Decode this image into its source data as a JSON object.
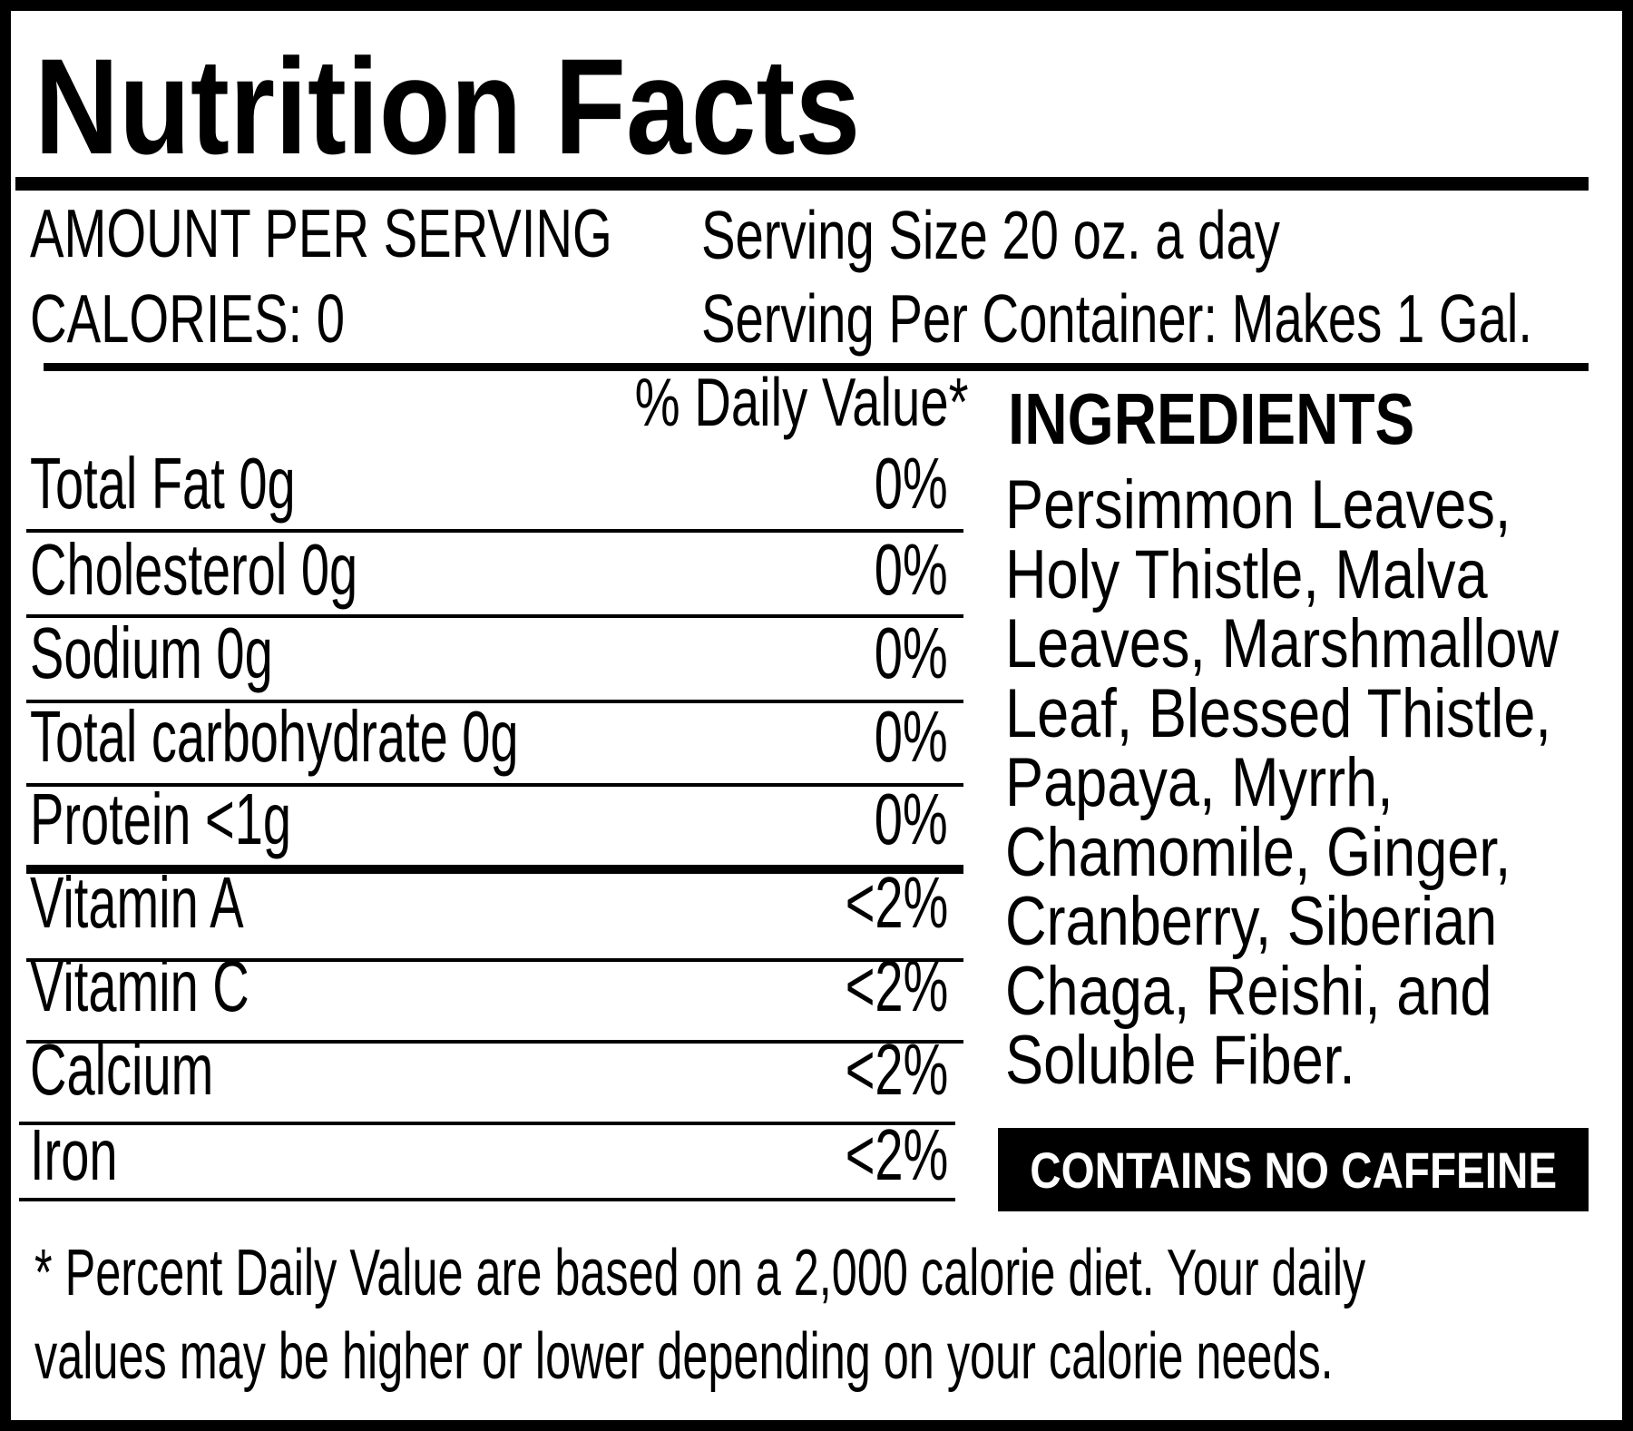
{
  "title": "Nutrition Facts",
  "header": {
    "amount_per_serving": "AMOUNT PER SERVING",
    "calories": "CALORIES: 0",
    "serving_size": "Serving Size 20 oz. a day",
    "servings_per_container": "Serving Per Container: Makes 1 Gal."
  },
  "daily_value_header": "% Daily Value*",
  "nutrients": [
    {
      "name": "Total Fat 0g",
      "dv": "0%"
    },
    {
      "name": "Cholesterol 0g",
      "dv": "0%"
    },
    {
      "name": "Sodium 0g",
      "dv": "0%"
    },
    {
      "name": "Total carbohydrate 0g",
      "dv": "0%"
    },
    {
      "name": "Protein <1g",
      "dv": "0%"
    },
    {
      "name": "Vitamin A",
      "dv": "<2%"
    },
    {
      "name": "Vitamin C",
      "dv": "<2%"
    },
    {
      "name": "Calcium",
      "dv": "<2%"
    },
    {
      "name": "Iron",
      "dv": "<2%"
    }
  ],
  "ingredients": {
    "title": "INGREDIENTS",
    "lines": [
      "Persimmon Leaves,",
      "Holy Thistle, Malva",
      "Leaves, Marshmallow",
      "Leaf, Blessed Thistle,",
      "Papaya, Myrrh,",
      "Chamomile, Ginger,",
      "Cranberry, Siberian",
      "Chaga, Reishi, and",
      "Soluble Fiber."
    ]
  },
  "caffeine_badge": "CONTAINS NO CAFFEINE",
  "footnote": [
    "* Percent Daily Value are based on a 2,000 calorie diet. Your daily",
    "values may be higher or lower depending on your calorie needs."
  ]
}
